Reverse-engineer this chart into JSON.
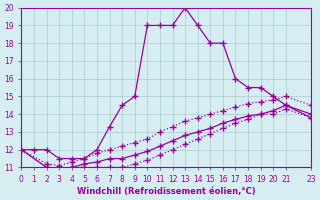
{
  "bg_color": "#d6eef2",
  "line_color": "#990099",
  "grid_color": "#b0d0d8",
  "xlabel": "Windchill (Refroidissement éolien,°C)",
  "xlabel_color": "#990099",
  "xlim": [
    0,
    23
  ],
  "ylim": [
    11,
    20
  ],
  "xticks": [
    0,
    1,
    2,
    3,
    4,
    5,
    6,
    7,
    8,
    9,
    10,
    11,
    12,
    13,
    14,
    15,
    16,
    17,
    18,
    19,
    20,
    21,
    23
  ],
  "yticks": [
    11,
    12,
    13,
    14,
    15,
    16,
    17,
    18,
    19,
    20
  ],
  "line1_x": [
    0,
    1,
    2,
    3,
    4,
    5,
    6,
    7,
    8,
    9,
    10,
    11,
    12,
    13,
    14,
    15,
    16,
    17,
    18,
    19,
    20,
    21,
    23
  ],
  "line1_y": [
    12.0,
    12.0,
    12.0,
    11.5,
    11.5,
    11.5,
    12.0,
    13.3,
    14.5,
    15.0,
    19.0,
    19.0,
    19.0,
    20.0,
    19.0,
    18.0,
    18.0,
    16.0,
    15.5,
    15.5,
    15.0,
    14.5,
    14.0
  ],
  "line2_x": [
    0,
    2,
    3,
    4,
    5,
    6,
    7,
    8,
    9,
    10,
    11,
    12,
    13,
    14,
    15,
    16,
    17,
    18,
    19,
    20,
    21,
    23
  ],
  "line2_y": [
    12.0,
    11.2,
    11.1,
    11.3,
    11.5,
    11.8,
    12.0,
    12.2,
    12.4,
    12.6,
    13.0,
    13.3,
    13.6,
    13.8,
    14.0,
    14.2,
    14.4,
    14.6,
    14.7,
    14.8,
    15.0,
    14.5
  ],
  "line3_x": [
    0,
    2,
    3,
    4,
    5,
    6,
    7,
    8,
    9,
    10,
    11,
    12,
    13,
    14,
    15,
    16,
    17,
    18,
    19,
    20,
    21,
    23
  ],
  "line3_y": [
    12.0,
    11.0,
    10.8,
    11.0,
    11.2,
    11.3,
    11.5,
    11.5,
    11.7,
    11.9,
    12.2,
    12.5,
    12.8,
    13.0,
    13.2,
    13.5,
    13.7,
    13.9,
    14.0,
    14.2,
    14.5,
    13.8
  ],
  "line4_x": [
    0,
    2,
    3,
    4,
    5,
    6,
    7,
    8,
    9,
    10,
    11,
    12,
    13,
    14,
    15,
    16,
    17,
    18,
    19,
    20,
    21,
    23
  ],
  "line4_y": [
    12.0,
    11.0,
    10.8,
    11.0,
    11.0,
    11.0,
    11.0,
    11.0,
    11.2,
    11.4,
    11.7,
    12.0,
    12.3,
    12.6,
    12.9,
    13.2,
    13.5,
    13.7,
    14.0,
    14.0,
    14.3,
    13.8
  ]
}
